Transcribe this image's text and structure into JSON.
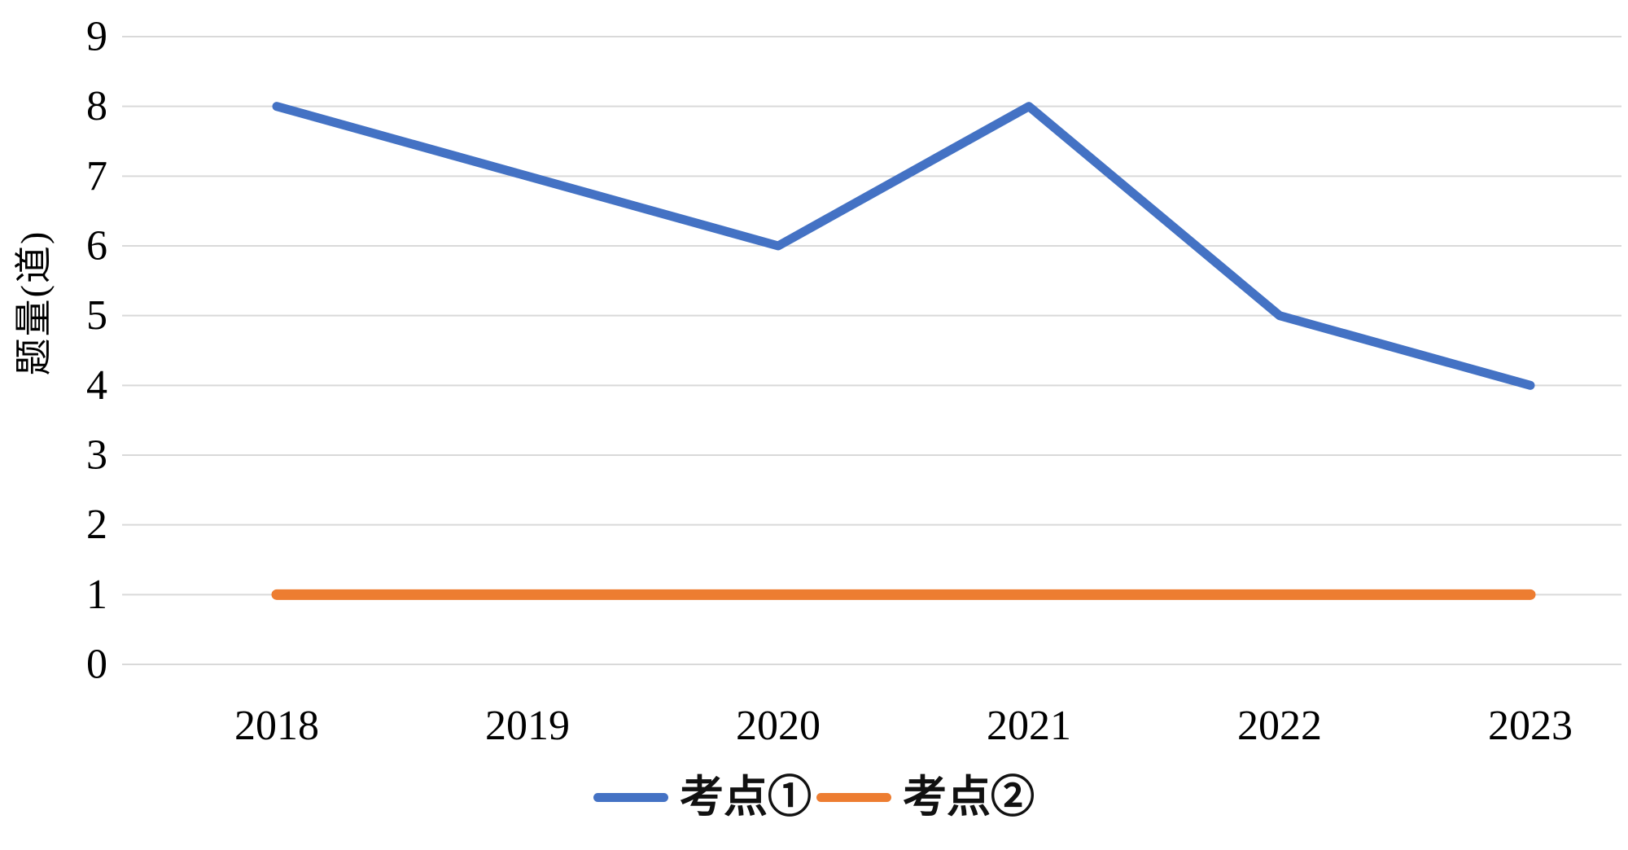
{
  "chart_data": {
    "type": "line",
    "categories": [
      "2018",
      "2019",
      "2020",
      "2021",
      "2022",
      "2023"
    ],
    "series": [
      {
        "name": "考点①",
        "color": "#4472C4",
        "values": [
          8,
          7,
          6,
          8,
          5,
          4
        ]
      },
      {
        "name": "考点②",
        "color": "#ED7D31",
        "values": [
          1,
          1,
          1,
          1,
          1,
          1
        ]
      }
    ],
    "title": "",
    "xlabel": "",
    "ylabel": "题量(道)",
    "ylim": [
      0,
      9
    ],
    "ytick_step": 1,
    "grid": true,
    "gridline_color": "#d9d9d9",
    "legend_position": "bottom"
  }
}
